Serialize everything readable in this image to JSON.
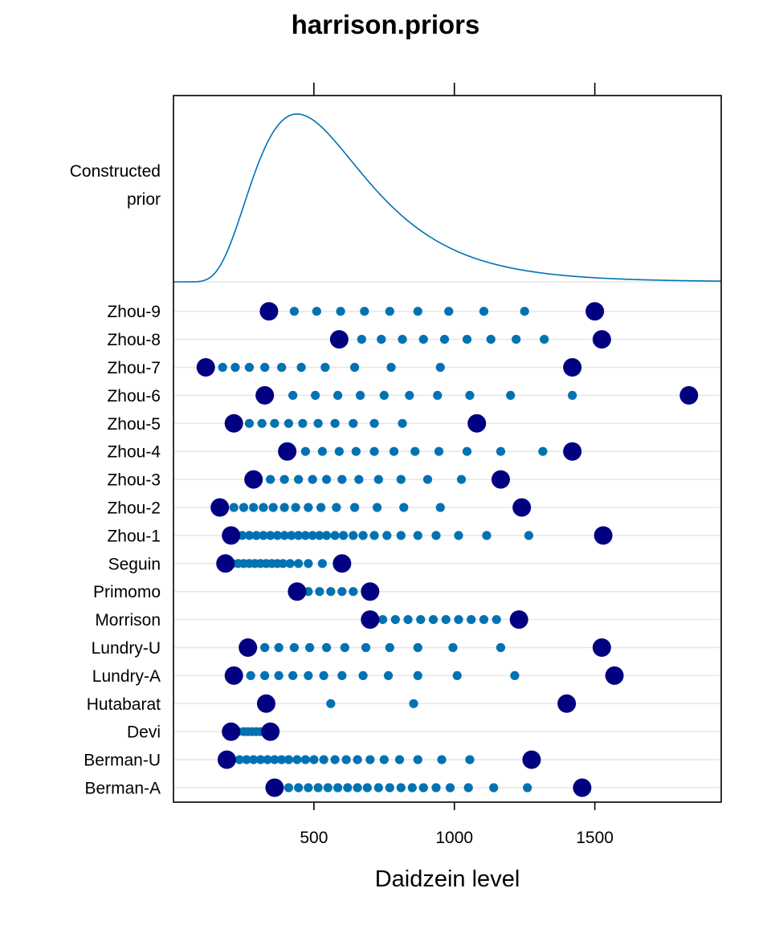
{
  "chart_data": {
    "type": "scatter",
    "title": "harrison.priors",
    "xlabel": "Daidzein level",
    "ylabel": "",
    "xlim": [
      0,
      1950
    ],
    "x_ticks": [
      500,
      1000,
      1500
    ],
    "x_tick_labels": [
      "500",
      "1000",
      "1500"
    ],
    "grid": true,
    "density_panel": {
      "label_lines": [
        "Constructed",
        "prior"
      ],
      "curve_type": "right-skewed unimodal",
      "mode": 440,
      "color": "#0072b2"
    },
    "colors": {
      "endpoint": "#000080",
      "interior": "#0072b2",
      "grid": "#e6e6e6"
    },
    "rows": [
      {
        "label": "Berman-A",
        "endpoints": [
          360,
          1455
        ],
        "points": [
          410,
          445,
          480,
          515,
          550,
          585,
          620,
          655,
          690,
          730,
          770,
          810,
          850,
          890,
          935,
          985,
          1050,
          1140,
          1260
        ]
      },
      {
        "label": "Berman-U",
        "endpoints": [
          190,
          1275
        ],
        "points": [
          235,
          260,
          285,
          310,
          335,
          360,
          385,
          410,
          440,
          470,
          500,
          535,
          575,
          615,
          655,
          700,
          750,
          805,
          870,
          955,
          1055
        ]
      },
      {
        "label": "Devi",
        "endpoints": [
          205,
          345
        ],
        "points": [
          230,
          250,
          265,
          280,
          295,
          310,
          325
        ]
      },
      {
        "label": "Hutabarat",
        "endpoints": [
          330,
          1400
        ],
        "points": [
          560,
          855
        ]
      },
      {
        "label": "Lundry-A",
        "endpoints": [
          215,
          1570
        ],
        "points": [
          275,
          325,
          375,
          425,
          480,
          535,
          600,
          675,
          765,
          870,
          1010,
          1215
        ]
      },
      {
        "label": "Lundry-U",
        "endpoints": [
          265,
          1525
        ],
        "points": [
          325,
          375,
          430,
          485,
          545,
          610,
          685,
          770,
          870,
          995,
          1165
        ]
      },
      {
        "label": "Morrison",
        "endpoints": [
          700,
          1230
        ],
        "points": [
          745,
          790,
          835,
          880,
          925,
          970,
          1015,
          1060,
          1105,
          1150
        ]
      },
      {
        "label": "Primomo",
        "endpoints": [
          440,
          700
        ],
        "points": [
          480,
          520,
          560,
          600,
          640
        ]
      },
      {
        "label": "Seguin",
        "endpoints": [
          185,
          600
        ],
        "points": [
          210,
          230,
          250,
          270,
          290,
          310,
          330,
          350,
          370,
          390,
          415,
          445,
          480,
          530
        ]
      },
      {
        "label": "Zhou-1",
        "endpoints": [
          205,
          1530
        ],
        "points": [
          245,
          270,
          295,
          320,
          345,
          370,
          395,
          420,
          445,
          470,
          495,
          520,
          545,
          575,
          605,
          640,
          675,
          715,
          760,
          810,
          870,
          935,
          1015,
          1115,
          1265
        ]
      },
      {
        "label": "Zhou-2",
        "endpoints": [
          165,
          1240
        ],
        "points": [
          215,
          250,
          285,
          320,
          355,
          395,
          435,
          480,
          525,
          580,
          645,
          725,
          820,
          950
        ]
      },
      {
        "label": "Zhou-3",
        "endpoints": [
          285,
          1165
        ],
        "points": [
          345,
          395,
          445,
          495,
          545,
          600,
          660,
          730,
          810,
          905,
          1025
        ]
      },
      {
        "label": "Zhou-4",
        "endpoints": [
          405,
          1420
        ],
        "points": [
          470,
          530,
          590,
          650,
          715,
          785,
          860,
          945,
          1045,
          1165,
          1315
        ]
      },
      {
        "label": "Zhou-5",
        "endpoints": [
          215,
          1080
        ],
        "points": [
          270,
          315,
          360,
          410,
          460,
          515,
          575,
          640,
          715,
          815
        ]
      },
      {
        "label": "Zhou-6",
        "endpoints": [
          325,
          1835
        ],
        "points": [
          425,
          505,
          585,
          665,
          750,
          840,
          940,
          1055,
          1200,
          1420
        ]
      },
      {
        "label": "Zhou-7",
        "endpoints": [
          115,
          1420
        ],
        "points": [
          175,
          220,
          270,
          325,
          385,
          455,
          540,
          645,
          775,
          950
        ]
      },
      {
        "label": "Zhou-8",
        "endpoints": [
          590,
          1525
        ],
        "points": [
          670,
          740,
          815,
          890,
          965,
          1045,
          1130,
          1220,
          1320
        ]
      },
      {
        "label": "Zhou-9",
        "endpoints": [
          340,
          1500
        ],
        "points": [
          430,
          510,
          595,
          680,
          770,
          870,
          980,
          1105,
          1250
        ]
      }
    ]
  }
}
